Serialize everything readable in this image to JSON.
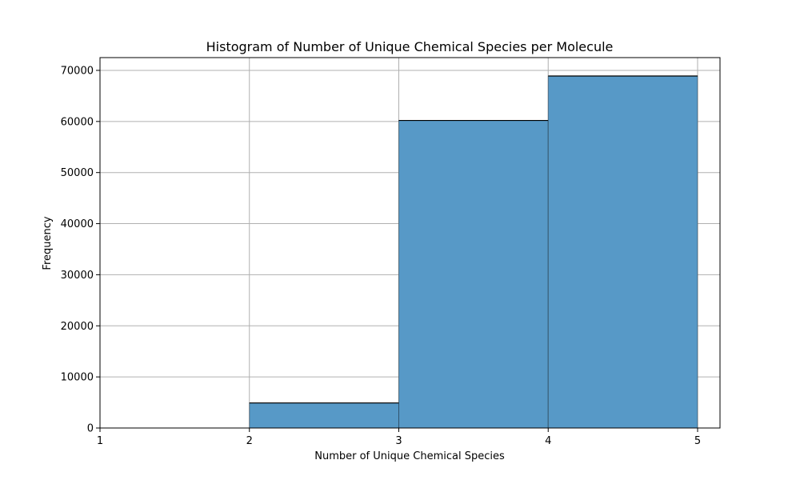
{
  "chart_data": {
    "type": "bar",
    "title": "Histogram of Number of Unique Chemical Species per Molecule",
    "xlabel": "Number of Unique Chemical Species",
    "ylabel": "Frequency",
    "bins": [
      {
        "start": 1,
        "end": 2,
        "value": 0
      },
      {
        "start": 2,
        "end": 3,
        "value": 4900
      },
      {
        "start": 3,
        "end": 4,
        "value": 60200
      },
      {
        "start": 4,
        "end": 5,
        "value": 68900
      }
    ],
    "xlim": [
      1,
      5.15
    ],
    "ylim": [
      0,
      72500
    ],
    "xticks": [
      1,
      2,
      3,
      4,
      5
    ],
    "yticks": [
      0,
      10000,
      20000,
      30000,
      40000,
      50000,
      60000,
      70000
    ],
    "grid": true,
    "bar_color": "#5799c7",
    "edge_color": "#000000"
  }
}
